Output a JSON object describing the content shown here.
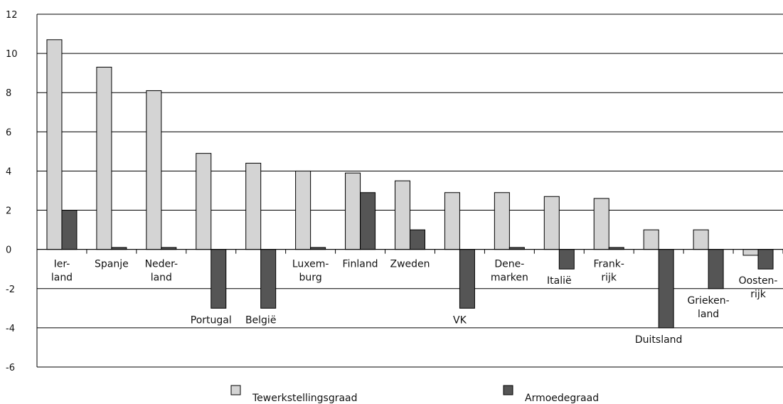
{
  "chart_data": {
    "type": "bar",
    "categories": [
      [
        "Ier-",
        "land"
      ],
      [
        "Spanje"
      ],
      [
        "Neder-",
        "land"
      ],
      [
        "Portugal"
      ],
      [
        "België"
      ],
      [
        "Luxem-",
        "burg"
      ],
      [
        "Finland"
      ],
      [
        "Zweden"
      ],
      [
        "VK"
      ],
      [
        "Dene-",
        "marken"
      ],
      [
        "Italië"
      ],
      [
        "Frank-",
        "rijk"
      ],
      [
        "Duitsland"
      ],
      [
        "Grieken-",
        "land"
      ],
      [
        "Oosten-",
        "rijk"
      ]
    ],
    "series": [
      {
        "name": "Tewerkstellingsgraad",
        "color": "#d4d4d4",
        "values": [
          10.7,
          9.3,
          8.1,
          4.9,
          4.4,
          4.0,
          3.9,
          3.5,
          2.9,
          2.9,
          2.7,
          2.6,
          1.0,
          1.0,
          -0.3
        ]
      },
      {
        "name": "Armoedegraad",
        "color": "#555555",
        "values": [
          2.0,
          0.1,
          0.1,
          -3.0,
          -3.0,
          0.1,
          2.9,
          1.0,
          -3.0,
          0.1,
          -1.0,
          0.1,
          -4.0,
          -2.0,
          -1.0
        ]
      }
    ],
    "ylim": [
      -6,
      12
    ],
    "yticks": [
      -6,
      -4,
      -2,
      0,
      2,
      4,
      6,
      8,
      10,
      12
    ],
    "grid": true,
    "legend_position": "bottom"
  }
}
